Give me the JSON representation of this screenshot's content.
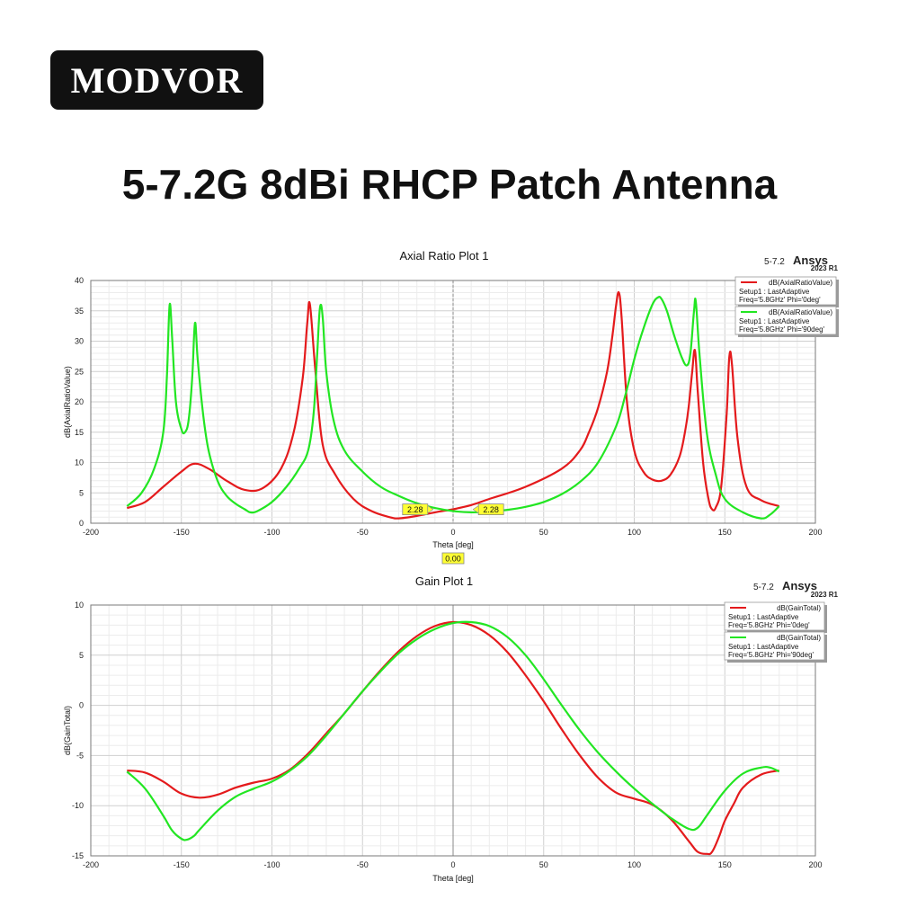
{
  "brand": {
    "logo_text": "MODVOR"
  },
  "page_title": "5-7.2G 8dBi RHCP Patch Antenna",
  "colors": {
    "phi0": "#e41a1c",
    "phi90": "#22e622",
    "marker_fill": "#ffff33"
  },
  "chart_data": [
    {
      "type": "line",
      "title": "Axial Ratio Plot 1",
      "version_label": "5-7.2",
      "ansys_label": "Ansys",
      "ansys_year": "2023 R1",
      "xlabel": "Theta [deg]",
      "ylabel": "dB(AxialRatioValue)",
      "xlim": [
        -200,
        200
      ],
      "ylim": [
        0,
        40
      ],
      "xticks": [
        "-200",
        "-150",
        "-100",
        "-50",
        "0",
        "50",
        "100",
        "150",
        "200"
      ],
      "yticks": [
        "0",
        "5",
        "10",
        "15",
        "20",
        "25",
        "30",
        "35",
        "40"
      ],
      "grid": true,
      "legend_position": "top-right",
      "markers": [
        {
          "x": -14,
          "y": 2.28,
          "label": "2.28"
        },
        {
          "x": 12,
          "y": 2.28,
          "label": "2.28"
        }
      ],
      "cursor": {
        "x": 0,
        "label": "0.00"
      },
      "series": [
        {
          "name": "dB(AxialRatioValue)",
          "setup": "Setup1 : LastAdaptive",
          "freq": "Freq='5.8GHz' Phi='0deg'",
          "x": [
            -180,
            -170,
            -160,
            -150,
            -143,
            -135,
            -125,
            -115,
            -105,
            -95,
            -88,
            -83,
            -80.5,
            -79,
            -76,
            -72,
            -65,
            -55,
            -45,
            -35,
            -30,
            -20,
            -10,
            0,
            10,
            20,
            40,
            60,
            70,
            75,
            80,
            85,
            88,
            90,
            91.5,
            93,
            96,
            100,
            105,
            110,
            115,
            120,
            125,
            128,
            130,
            132,
            133.5,
            135,
            138,
            141,
            143,
            145,
            148,
            151,
            152.5,
            154,
            157,
            162,
            170,
            180
          ],
          "y": [
            2.5,
            3.5,
            6.0,
            8.5,
            9.8,
            9.0,
            7.0,
            5.5,
            5.8,
            9.0,
            15.0,
            24.0,
            33.0,
            36.0,
            25.0,
            13.0,
            8.0,
            4.0,
            2.0,
            1.0,
            0.8,
            1.2,
            1.8,
            2.3,
            3.0,
            4.0,
            6.0,
            9.0,
            12.0,
            15.0,
            19.0,
            25.0,
            31.0,
            36.0,
            38.0,
            34.0,
            20.0,
            12.0,
            8.5,
            7.2,
            7.0,
            8.0,
            11.0,
            15.0,
            19.0,
            25.0,
            28.5,
            22.0,
            10.0,
            4.0,
            2.3,
            2.6,
            6.0,
            18.0,
            27.5,
            26.0,
            14.0,
            6.0,
            3.8,
            2.8
          ]
        },
        {
          "name": "dB(AxialRatioValue)",
          "setup": "Setup1 : LastAdaptive",
          "freq": "Freq='5.8GHz' Phi='90deg'",
          "x": [
            -180,
            -172,
            -165,
            -160,
            -158,
            -156.5,
            -155,
            -153,
            -150,
            -148,
            -146,
            -144,
            -142.5,
            -141,
            -138,
            -135,
            -130,
            -125,
            -120,
            -115,
            -112,
            -108,
            -100,
            -92,
            -85,
            -80,
            -77,
            -75,
            -73.5,
            -72,
            -70,
            -66,
            -60,
            -50,
            -40,
            -30,
            -20,
            -10,
            0,
            10,
            20,
            30,
            40,
            50,
            60,
            70,
            80,
            90,
            95,
            100,
            105,
            110,
            113,
            115,
            118,
            122,
            126,
            129,
            131,
            133,
            134,
            136,
            140,
            145,
            150,
            160,
            170,
            175,
            180
          ],
          "y": [
            2.8,
            5.0,
            9.0,
            15.0,
            24.0,
            36.0,
            30.0,
            20.0,
            15.5,
            15.0,
            17.0,
            24.0,
            33.0,
            27.0,
            18.0,
            12.0,
            7.0,
            4.5,
            3.2,
            2.3,
            1.8,
            2.0,
            3.5,
            6.0,
            9.0,
            12.0,
            18.0,
            28.0,
            35.5,
            34.0,
            25.0,
            17.0,
            12.0,
            8.5,
            6.0,
            4.5,
            3.3,
            2.5,
            2.0,
            1.8,
            1.9,
            2.2,
            2.7,
            3.5,
            4.8,
            6.8,
            10.0,
            16.0,
            21.0,
            27.0,
            32.0,
            36.0,
            37.2,
            37.0,
            35.0,
            31.0,
            27.5,
            26.0,
            28.0,
            35.0,
            36.5,
            28.0,
            15.0,
            8.0,
            4.0,
            1.8,
            0.8,
            1.4,
            2.8
          ]
        }
      ]
    },
    {
      "type": "line",
      "title": "Gain Plot 1",
      "version_label": "5-7.2",
      "ansys_label": "Ansys",
      "ansys_year": "2023 R1",
      "xlabel": "Theta [deg]",
      "ylabel": "dB(GainTotal)",
      "xlim": [
        -200,
        200
      ],
      "ylim": [
        -15,
        10
      ],
      "xticks": [
        "-200",
        "-150",
        "-100",
        "-50",
        "0",
        "50",
        "100",
        "150",
        "200"
      ],
      "yticks": [
        "-15",
        "-10",
        "-5",
        "0",
        "5",
        "10"
      ],
      "grid": true,
      "legend_position": "top-right",
      "series": [
        {
          "name": "dB(GainTotal)",
          "setup": "Setup1 : LastAdaptive",
          "freq": "Freq='5.8GHz' Phi='0deg'",
          "x": [
            -180,
            -170,
            -160,
            -150,
            -140,
            -130,
            -120,
            -110,
            -100,
            -90,
            -80,
            -70,
            -60,
            -50,
            -40,
            -30,
            -20,
            -10,
            0,
            10,
            20,
            30,
            40,
            50,
            60,
            70,
            80,
            90,
            100,
            110,
            120,
            130,
            135,
            140,
            143,
            147,
            150,
            155,
            160,
            170,
            180
          ],
          "y": [
            -6.5,
            -6.7,
            -7.6,
            -8.8,
            -9.2,
            -8.9,
            -8.2,
            -7.7,
            -7.3,
            -6.4,
            -4.8,
            -2.8,
            -0.8,
            1.4,
            3.5,
            5.4,
            6.9,
            7.9,
            8.3,
            8.0,
            7.0,
            5.3,
            3.0,
            0.4,
            -2.4,
            -5.0,
            -7.2,
            -8.7,
            -9.3,
            -9.9,
            -11.3,
            -13.5,
            -14.6,
            -14.8,
            -14.6,
            -13.0,
            -11.5,
            -9.8,
            -8.2,
            -6.9,
            -6.5
          ]
        },
        {
          "name": "dB(GainTotal)",
          "setup": "Setup1 : LastAdaptive",
          "freq": "Freq='5.8GHz' Phi='90deg'",
          "x": [
            -180,
            -170,
            -160,
            -155,
            -150,
            -147,
            -143,
            -140,
            -130,
            -120,
            -110,
            -100,
            -90,
            -80,
            -70,
            -60,
            -50,
            -40,
            -30,
            -20,
            -10,
            0,
            10,
            20,
            30,
            40,
            50,
            60,
            70,
            80,
            90,
            100,
            110,
            120,
            130,
            135,
            140,
            150,
            160,
            170,
            175,
            180
          ],
          "y": [
            -6.6,
            -8.3,
            -11.0,
            -12.5,
            -13.3,
            -13.4,
            -13.0,
            -12.4,
            -10.5,
            -9.1,
            -8.3,
            -7.6,
            -6.5,
            -5.0,
            -3.0,
            -0.8,
            1.4,
            3.4,
            5.2,
            6.6,
            7.6,
            8.2,
            8.3,
            7.9,
            6.8,
            5.0,
            2.6,
            0.0,
            -2.5,
            -4.7,
            -6.6,
            -8.3,
            -9.8,
            -11.2,
            -12.3,
            -12.2,
            -11.0,
            -8.5,
            -6.8,
            -6.2,
            -6.2,
            -6.6
          ]
        }
      ]
    }
  ]
}
